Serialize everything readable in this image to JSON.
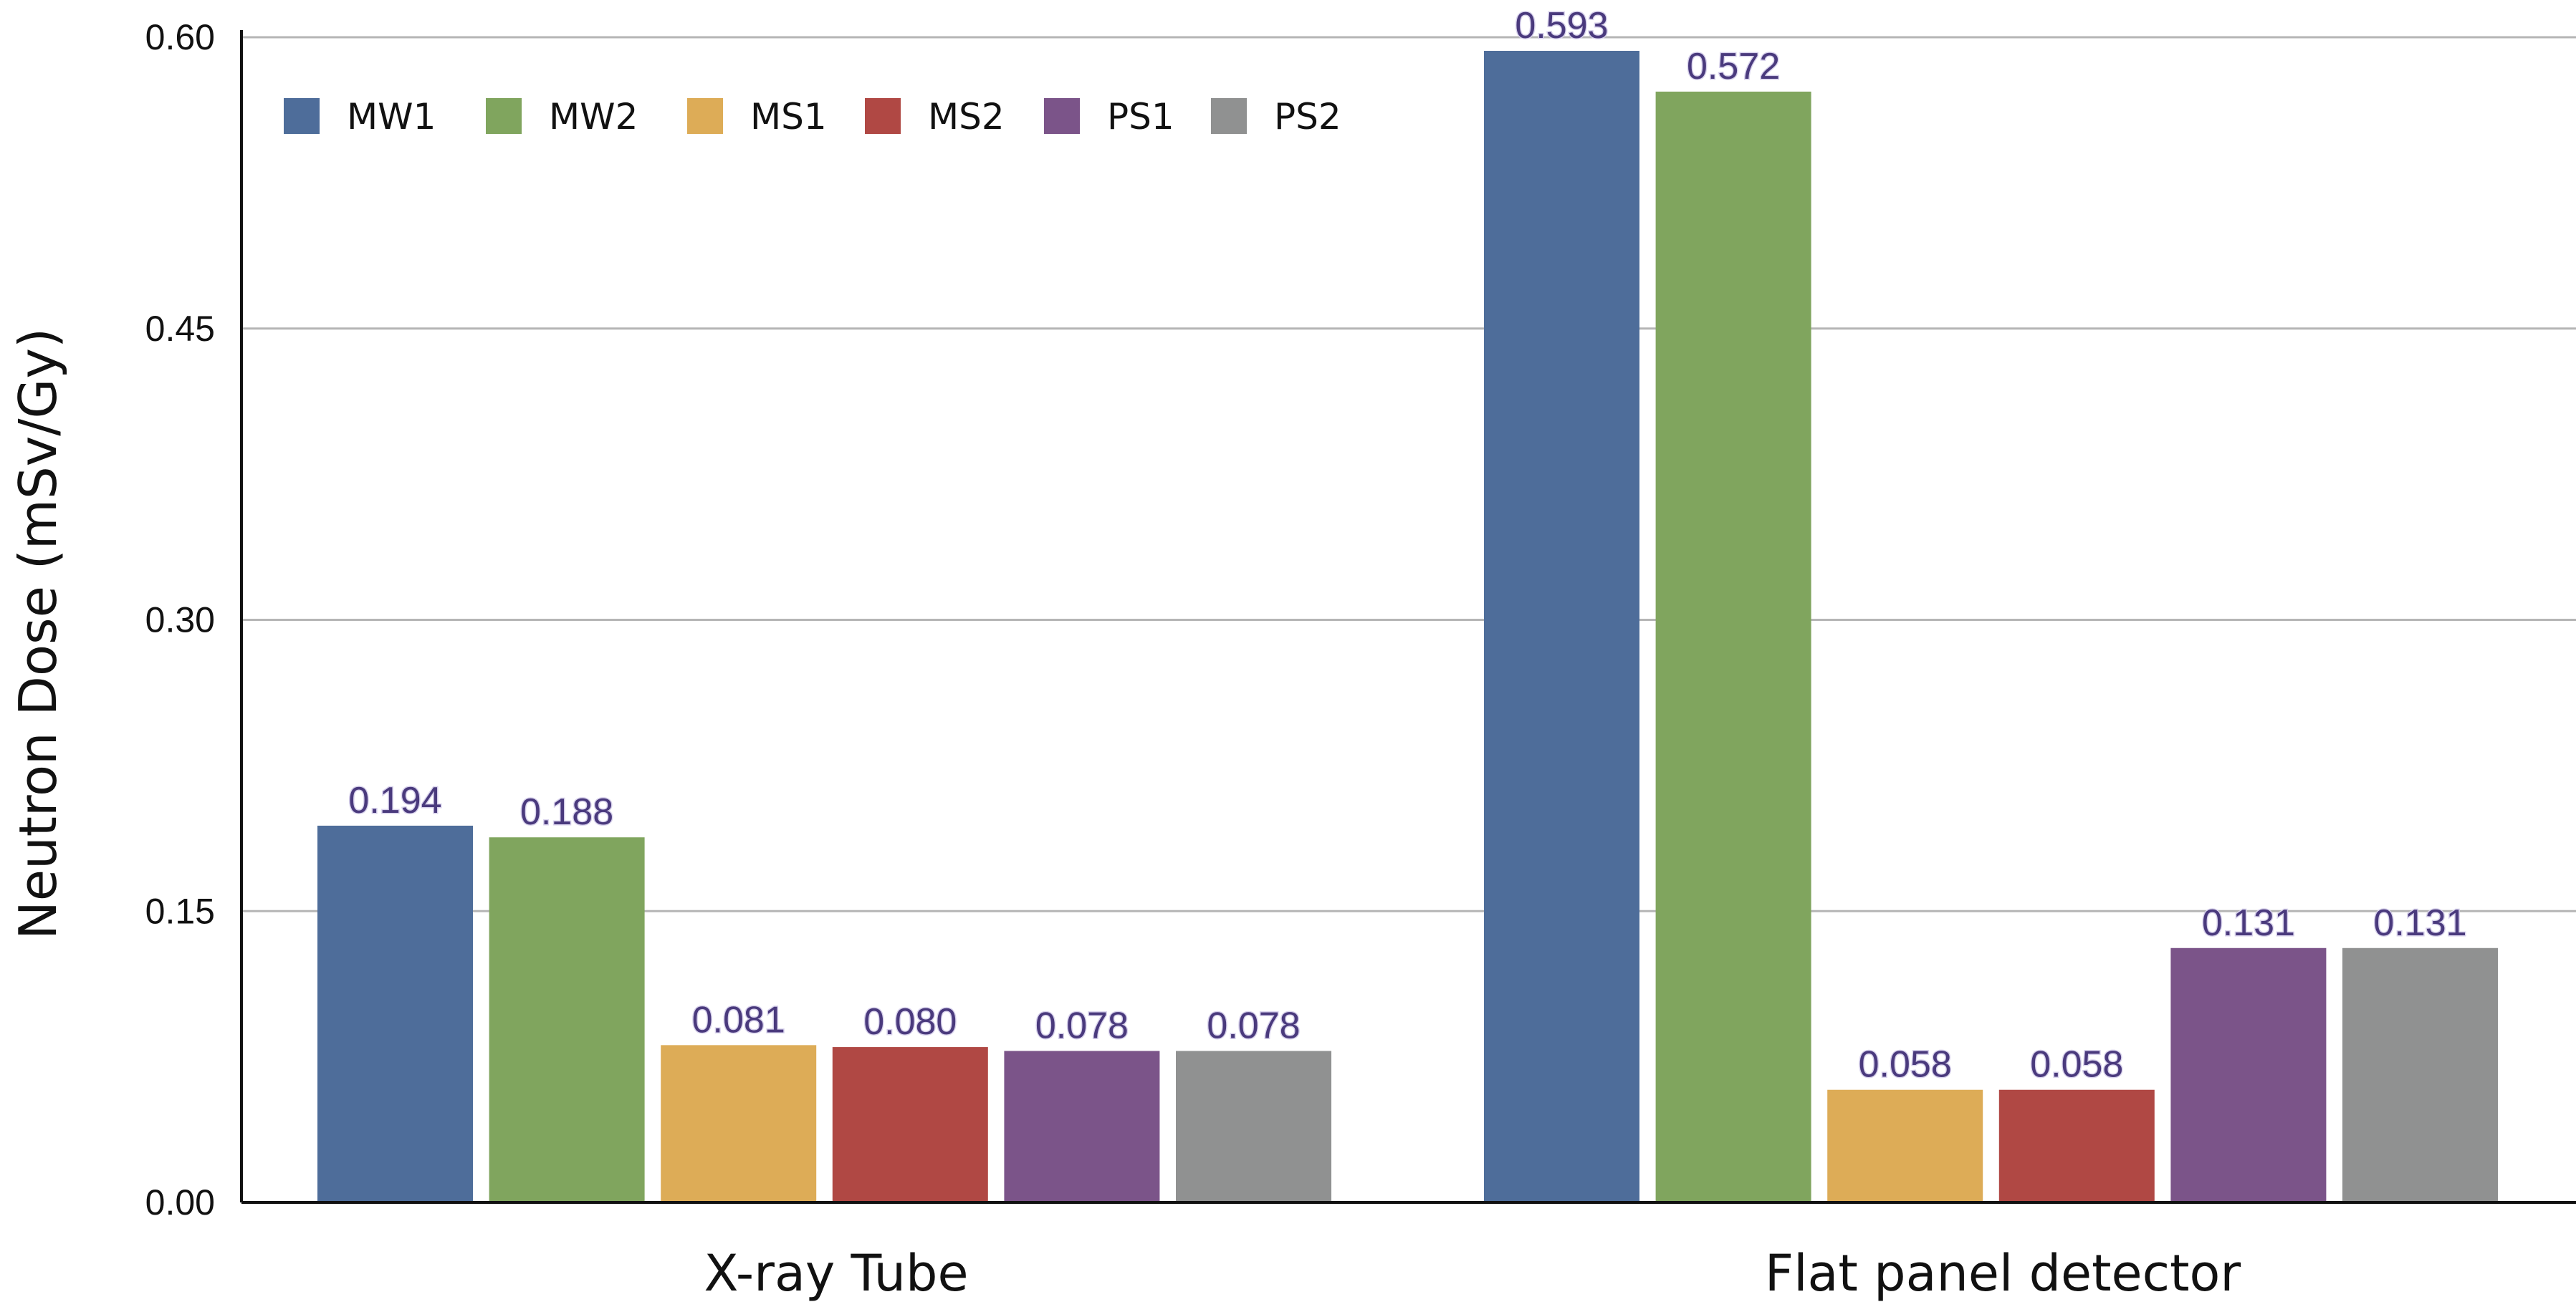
{
  "chart_data": {
    "type": "bar",
    "ylabel": "Neutron Dose (mSv/Gy)",
    "xlabel": "",
    "ylim": [
      0,
      0.6
    ],
    "y_ticks": [
      "0.00",
      "0.15",
      "0.30",
      "0.45",
      "0.60"
    ],
    "y_tick_values": [
      0,
      0.15,
      0.3,
      0.45,
      0.6
    ],
    "grid": true,
    "legend_position": "top-left",
    "categories": [
      "X-ray Tube",
      "Flat panel detector"
    ],
    "series": [
      {
        "name": "MW1",
        "color": "#4e6d9a",
        "values": [
          0.194,
          0.593
        ],
        "labels": [
          "0.194",
          "0.593"
        ]
      },
      {
        "name": "MW2",
        "color": "#80a55e",
        "values": [
          0.188,
          0.572
        ],
        "labels": [
          "0.188",
          "0.572"
        ]
      },
      {
        "name": "MS1",
        "color": "#ddac57",
        "values": [
          0.081,
          0.058
        ],
        "labels": [
          "0.081",
          "0.058"
        ]
      },
      {
        "name": "MS2",
        "color": "#b04844",
        "values": [
          0.08,
          0.058
        ],
        "labels": [
          "0.080",
          "0.058"
        ]
      },
      {
        "name": "PS1",
        "color": "#7b5489",
        "values": [
          0.078,
          0.131
        ],
        "labels": [
          "0.078",
          "0.131"
        ]
      },
      {
        "name": "PS2",
        "color": "#909191",
        "values": [
          0.078,
          0.131
        ],
        "labels": [
          "0.078",
          "0.131"
        ]
      }
    ]
  }
}
